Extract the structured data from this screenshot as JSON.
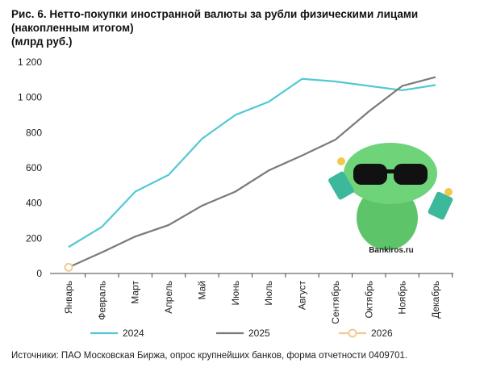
{
  "chart_data": {
    "type": "line",
    "title": [
      "Рис. 6. Нетто-покупки иностранной валюты за рубли физическими лицами",
      "(накопленным итогом)"
    ],
    "subtitle": "(млрд руб.)",
    "categories": [
      "Январь",
      "Февраль",
      "Март",
      "Апрель",
      "Май",
      "Июнь",
      "Июль",
      "Август",
      "Сентябрь",
      "Октябрь",
      "Ноябрь",
      "Декабрь"
    ],
    "series": [
      {
        "name": "2024",
        "color": "#52c8d3",
        "values": [
          150,
          265,
          465,
          560,
          765,
          900,
          975,
          1105,
          1090,
          1065,
          1040,
          1070
        ]
      },
      {
        "name": "2025",
        "color": "#7a7a7a",
        "values": [
          35,
          120,
          210,
          275,
          385,
          465,
          585,
          670,
          760,
          920,
          1065,
          1115
        ]
      },
      {
        "name": "2026",
        "color": "#f2c994",
        "marker": "hollow-circle",
        "values": [
          35,
          null,
          null,
          null,
          null,
          null,
          null,
          null,
          null,
          null,
          null,
          null
        ]
      }
    ],
    "ylim": [
      0,
      1200
    ],
    "yticks": [
      0,
      200,
      400,
      600,
      800,
      {
        "value": 1000,
        "label": "1 000"
      },
      {
        "value": 1200,
        "label": "1 200"
      }
    ],
    "grid": false,
    "legend": "bottom",
    "watermark": "Bankiros.ru",
    "source": "Источники: ПАО Московская Биржа, опрос крупнейших банков, форма отчетности 0409701."
  }
}
